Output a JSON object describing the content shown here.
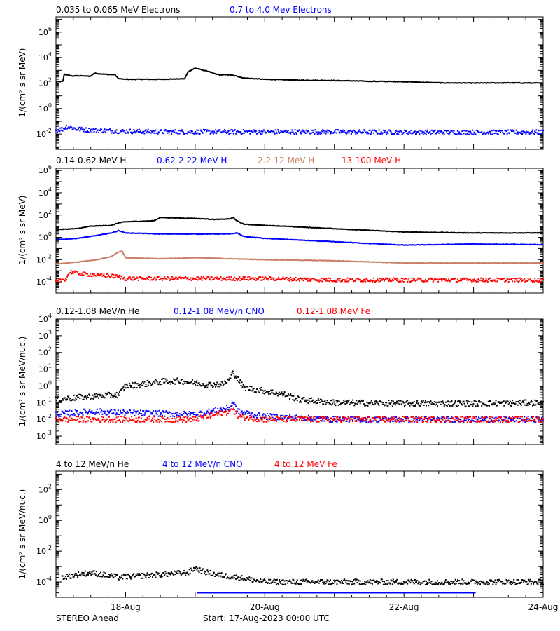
{
  "footer": {
    "spacecraft": "STEREO Ahead",
    "start": "Start: 17-Aug-2023 00:00 UTC"
  },
  "x_axis": {
    "unit": "days since start",
    "range": [
      0,
      7
    ],
    "ticks": [
      {
        "x": 1,
        "label": "18-Aug"
      },
      {
        "x": 3,
        "label": "20-Aug"
      },
      {
        "x": 5,
        "label": "22-Aug"
      },
      {
        "x": 7,
        "label": "24-Aug"
      }
    ]
  },
  "colors": {
    "black": "#000000",
    "blue": "#0000ff",
    "tan": "#c87d64",
    "red": "#ff0000"
  },
  "chart_data": [
    {
      "type": "line",
      "scale": "log",
      "ylabel": "1/(cm² s sr MeV)",
      "ylim_exp": [
        -3.2,
        7.2
      ],
      "y_tick_exps": [
        -2,
        0,
        2,
        4,
        6
      ],
      "legend": [
        {
          "label": "0.035 to 0.065 MeV Electrons",
          "color": "black"
        },
        {
          "label": "0.7 to 4.0 Mev Electrons",
          "color": "blue"
        }
      ],
      "series": [
        {
          "name": "0.035 to 0.065 MeV Electrons",
          "color": "black",
          "style": "line",
          "x": [
            0,
            0.1,
            0.12,
            0.2,
            0.25,
            0.3,
            0.5,
            0.55,
            0.7,
            0.85,
            0.9,
            1.0,
            1.5,
            1.85,
            1.9,
            2.0,
            2.2,
            2.3,
            2.35,
            2.5,
            2.6,
            2.7,
            3.0,
            3.5,
            4.0,
            4.5,
            5.0,
            5.5,
            6.0,
            6.5,
            7.0
          ],
          "y": [
            120.0,
            140.0,
            500.0,
            400.0,
            350.0,
            380.0,
            350.0,
            600.0,
            500.0,
            450.0,
            220.0,
            200.0,
            200.0,
            220.0,
            800.0,
            1500.0,
            800.0,
            500.0,
            450.0,
            450.0,
            350.0,
            250.0,
            200.0,
            170.0,
            160.0,
            140.0,
            130.0,
            105.0,
            100.0,
            105.0,
            100.0
          ]
        },
        {
          "name": "0.7 to 4.0 Mev Electrons",
          "color": "blue",
          "style": "dots",
          "x": [
            0,
            0.1,
            0.15,
            0.3,
            0.5,
            0.9,
            1.5,
            2.0,
            3.0,
            4.0,
            5.0,
            6.0,
            7.0
          ],
          "y": [
            0.02,
            0.025,
            0.04,
            0.025,
            0.02,
            0.017,
            0.015,
            0.015,
            0.015,
            0.015,
            0.014,
            0.014,
            0.014
          ]
        }
      ]
    },
    {
      "type": "line",
      "scale": "log",
      "ylabel": "1/(cm² s sr MeV)",
      "ylim_exp": [
        -5,
        6.2
      ],
      "y_tick_exps": [
        -4,
        -2,
        0,
        2,
        4,
        6
      ],
      "legend": [
        {
          "label": "0.14-0.62 MeV H",
          "color": "black"
        },
        {
          "label": "0.62-2.22 MeV H",
          "color": "blue"
        },
        {
          "label": "2.2-12 MeV H",
          "color": "tan"
        },
        {
          "label": "13-100 MeV H",
          "color": "red"
        }
      ],
      "series": [
        {
          "name": "0.14-0.62 MeV H",
          "color": "black",
          "style": "line",
          "x": [
            0,
            0.3,
            0.5,
            0.8,
            0.9,
            1.0,
            1.4,
            1.5,
            2.0,
            2.3,
            2.5,
            2.55,
            2.6,
            2.7,
            3.0,
            4.0,
            5.0,
            6.0,
            7.0
          ],
          "y": [
            5,
            6,
            10,
            12,
            20,
            25,
            30,
            60,
            50,
            40,
            45,
            60,
            30,
            15,
            12,
            6,
            3,
            2.5,
            2.5
          ]
        },
        {
          "name": "0.62-2.22 MeV H",
          "color": "blue",
          "style": "line",
          "x": [
            0,
            0.3,
            0.6,
            0.8,
            0.9,
            1.0,
            1.5,
            2.0,
            2.5,
            2.6,
            2.7,
            3.0,
            4.0,
            5.0,
            6.0,
            7.0
          ],
          "y": [
            0.6,
            0.8,
            1.5,
            2.5,
            4,
            2.5,
            2,
            2,
            2,
            2.5,
            1.2,
            0.8,
            0.4,
            0.2,
            0.25,
            0.22
          ]
        },
        {
          "name": "2.2-12 MeV H",
          "color": "tan",
          "style": "line",
          "x": [
            0,
            0.3,
            0.6,
            0.8,
            0.9,
            0.95,
            1.0,
            1.5,
            2.0,
            2.5,
            3.0,
            4.0,
            5.0,
            6.0,
            7.0
          ],
          "y": [
            0.004,
            0.006,
            0.01,
            0.02,
            0.05,
            0.06,
            0.015,
            0.012,
            0.015,
            0.012,
            0.01,
            0.008,
            0.005,
            0.005,
            0.005
          ]
        },
        {
          "name": "13-100 MeV H",
          "color": "red",
          "style": "dots",
          "x": [
            0,
            0.15,
            0.2,
            0.4,
            0.9,
            1.0,
            2.0,
            3.0,
            4.0,
            5.0,
            6.0,
            7.0
          ],
          "y": [
            0.0001,
            0.0002,
            0.0008,
            0.0005,
            0.0003,
            0.0002,
            0.0002,
            0.0002,
            0.00015,
            0.00015,
            0.00015,
            0.00015
          ]
        }
      ]
    },
    {
      "type": "scatter",
      "scale": "log",
      "ylabel": "1/(cm² s sr MeV/nuc.)",
      "ylim_exp": [
        -3.5,
        4
      ],
      "y_tick_exps": [
        -3,
        -2,
        -1,
        0,
        1,
        2,
        3,
        4
      ],
      "legend": [
        {
          "label": "0.12-1.08 MeV/n He",
          "color": "black"
        },
        {
          "label": "0.12-1.08 MeV/n CNO",
          "color": "blue"
        },
        {
          "label": "0.12-1.08 MeV Fe",
          "color": "red"
        }
      ],
      "series": [
        {
          "name": "0.12-1.08 MeV/n He",
          "color": "black",
          "style": "dots",
          "x": [
            0,
            0.3,
            0.6,
            0.9,
            1.0,
            1.2,
            1.5,
            1.8,
            2.0,
            2.2,
            2.4,
            2.5,
            2.55,
            2.6,
            2.7,
            3.0,
            3.3,
            3.5,
            4.0,
            5.0,
            6.0,
            7.0
          ],
          "y": [
            0.15,
            0.2,
            0.25,
            0.3,
            1,
            1.2,
            1.8,
            2,
            1.5,
            1.2,
            1.3,
            2.5,
            7,
            3,
            0.8,
            0.5,
            0.3,
            0.15,
            0.1,
            0.09,
            0.09,
            0.1
          ]
        },
        {
          "name": "0.12-1.08 MeV/n CNO",
          "color": "blue",
          "style": "dots",
          "x": [
            0,
            0.5,
            1.0,
            2.0,
            2.5,
            2.55,
            2.6,
            3.0,
            4.0,
            5.0,
            6.0,
            7.0
          ],
          "y": [
            0.02,
            0.03,
            0.025,
            0.02,
            0.05,
            0.12,
            0.03,
            0.015,
            0.01,
            0.01,
            0.01,
            0.01
          ]
        },
        {
          "name": "0.12-1.08 MeV Fe",
          "color": "red",
          "style": "dots",
          "x": [
            0,
            0.5,
            1.0,
            2.0,
            2.5,
            2.55,
            2.6,
            3.0,
            4.0,
            5.0,
            6.0,
            7.0
          ],
          "y": [
            0.01,
            0.01,
            0.01,
            0.01,
            0.03,
            0.06,
            0.015,
            0.01,
            0.01,
            0.01,
            0.01,
            0.01
          ]
        }
      ]
    },
    {
      "type": "scatter",
      "scale": "log",
      "ylabel": "1/(cm² s sr MeV/nuc.)",
      "ylim_exp": [
        -5,
        3.2
      ],
      "y_tick_exps": [
        -4,
        -2,
        0,
        2
      ],
      "legend": [
        {
          "label": "4 to 12 MeV/n He",
          "color": "black"
        },
        {
          "label": "4 to 12 MeV/n CNO",
          "color": "blue"
        },
        {
          "label": "4 to 12 MeV Fe",
          "color": "red"
        }
      ],
      "series": [
        {
          "name": "4 to 12 MeV/n He",
          "color": "black",
          "style": "dots",
          "x": [
            0.1,
            0.3,
            0.5,
            0.9,
            1.9,
            2.0,
            2.1,
            2.3,
            2.6,
            3.0,
            4.0,
            5.0,
            6.0,
            7.0
          ],
          "y": [
            0.0002,
            0.0003,
            0.0004,
            0.0002,
            0.0004,
            0.0008,
            0.0005,
            0.0003,
            0.0002,
            0.0001,
            0.0001,
            0.0001,
            0.0001,
            0.0001
          ]
        },
        {
          "name": "4 to 12 MeV/n CNO",
          "color": "blue",
          "style": "dots",
          "x": [
            2.05,
            6.0
          ],
          "y": [
            2e-05,
            2e-05
          ]
        }
      ]
    }
  ]
}
